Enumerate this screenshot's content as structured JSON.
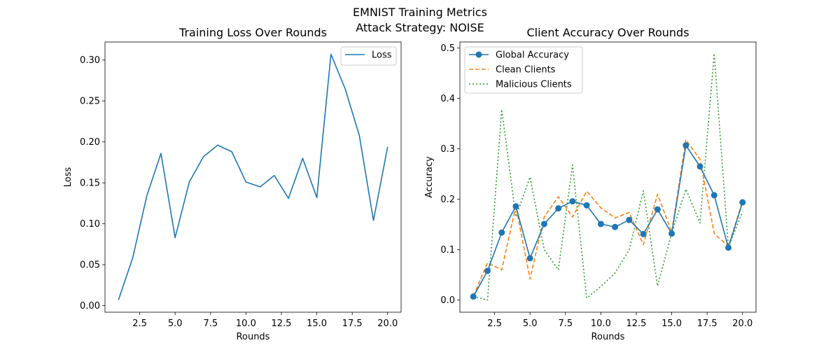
{
  "figure": {
    "suptitle_line1": "EMNIST Training Metrics",
    "suptitle_line2": "Attack Strategy: NOISE"
  },
  "chart_data": [
    {
      "type": "line",
      "title": "Training Loss Over Rounds",
      "xlabel": "Rounds",
      "ylabel": "Loss",
      "xlim": [
        0.05,
        20.95
      ],
      "ylim": [
        -0.008,
        0.322
      ],
      "xticks": [
        2.5,
        5.0,
        7.5,
        10.0,
        12.5,
        15.0,
        17.5,
        20.0
      ],
      "xtick_labels": [
        "2.5",
        "5.0",
        "7.5",
        "10.0",
        "12.5",
        "15.0",
        "17.5",
        "20.0"
      ],
      "yticks": [
        0.0,
        0.05,
        0.1,
        0.15,
        0.2,
        0.25,
        0.3
      ],
      "ytick_labels": [
        "0.00",
        "0.05",
        "0.10",
        "0.15",
        "0.20",
        "0.25",
        "0.30"
      ],
      "grid": false,
      "legend_position": "top-right",
      "x": [
        1,
        2,
        3,
        4,
        5,
        6,
        7,
        8,
        9,
        10,
        11,
        12,
        13,
        14,
        15,
        16,
        17,
        18,
        19,
        20
      ],
      "series": [
        {
          "name": "Loss",
          "color": "#1f77b4",
          "style": "solid",
          "marker": "none",
          "values": [
            0.007,
            0.058,
            0.134,
            0.186,
            0.083,
            0.151,
            0.182,
            0.196,
            0.188,
            0.151,
            0.145,
            0.159,
            0.131,
            0.18,
            0.132,
            0.307,
            0.265,
            0.208,
            0.104,
            0.194
          ]
        }
      ]
    },
    {
      "type": "line",
      "title": "Client Accuracy Over Rounds",
      "xlabel": "Rounds",
      "ylabel": "Accuracy",
      "xlim": [
        0.05,
        20.95
      ],
      "ylim": [
        -0.024,
        0.512
      ],
      "xticks": [
        2.5,
        5.0,
        7.5,
        10.0,
        12.5,
        15.0,
        17.5,
        20.0
      ],
      "xtick_labels": [
        "2.5",
        "5.0",
        "7.5",
        "10.0",
        "12.5",
        "15.0",
        "17.5",
        "20.0"
      ],
      "yticks": [
        0.0,
        0.1,
        0.2,
        0.3,
        0.4,
        0.5
      ],
      "ytick_labels": [
        "0.0",
        "0.1",
        "0.2",
        "0.3",
        "0.4",
        "0.5"
      ],
      "grid": false,
      "legend_position": "top-left",
      "x": [
        1,
        2,
        3,
        4,
        5,
        6,
        7,
        8,
        9,
        10,
        11,
        12,
        13,
        14,
        15,
        16,
        17,
        18,
        19,
        20
      ],
      "series": [
        {
          "name": "Global Accuracy",
          "color": "#1f77b4",
          "style": "solid",
          "marker": "circle",
          "values": [
            0.007,
            0.058,
            0.134,
            0.186,
            0.083,
            0.151,
            0.182,
            0.196,
            0.188,
            0.151,
            0.145,
            0.159,
            0.131,
            0.18,
            0.132,
            0.307,
            0.265,
            0.208,
            0.104,
            0.194
          ]
        },
        {
          "name": "Clean Clients",
          "color": "#ff7f0e",
          "style": "dashed",
          "marker": "none",
          "values": [
            0.008,
            0.074,
            0.06,
            0.186,
            0.042,
            0.165,
            0.205,
            0.165,
            0.216,
            0.183,
            0.163,
            0.174,
            0.11,
            0.21,
            0.135,
            0.318,
            0.279,
            0.132,
            0.107,
            0.196
          ]
        },
        {
          "name": "Malicious Clients",
          "color": "#2ca02c",
          "style": "dotted",
          "marker": "none",
          "values": [
            0.007,
            0.0,
            0.378,
            0.165,
            0.244,
            0.1,
            0.06,
            0.268,
            0.004,
            0.027,
            0.054,
            0.1,
            0.217,
            0.028,
            0.133,
            0.22,
            0.153,
            0.489,
            0.105,
            0.175
          ]
        }
      ]
    }
  ]
}
